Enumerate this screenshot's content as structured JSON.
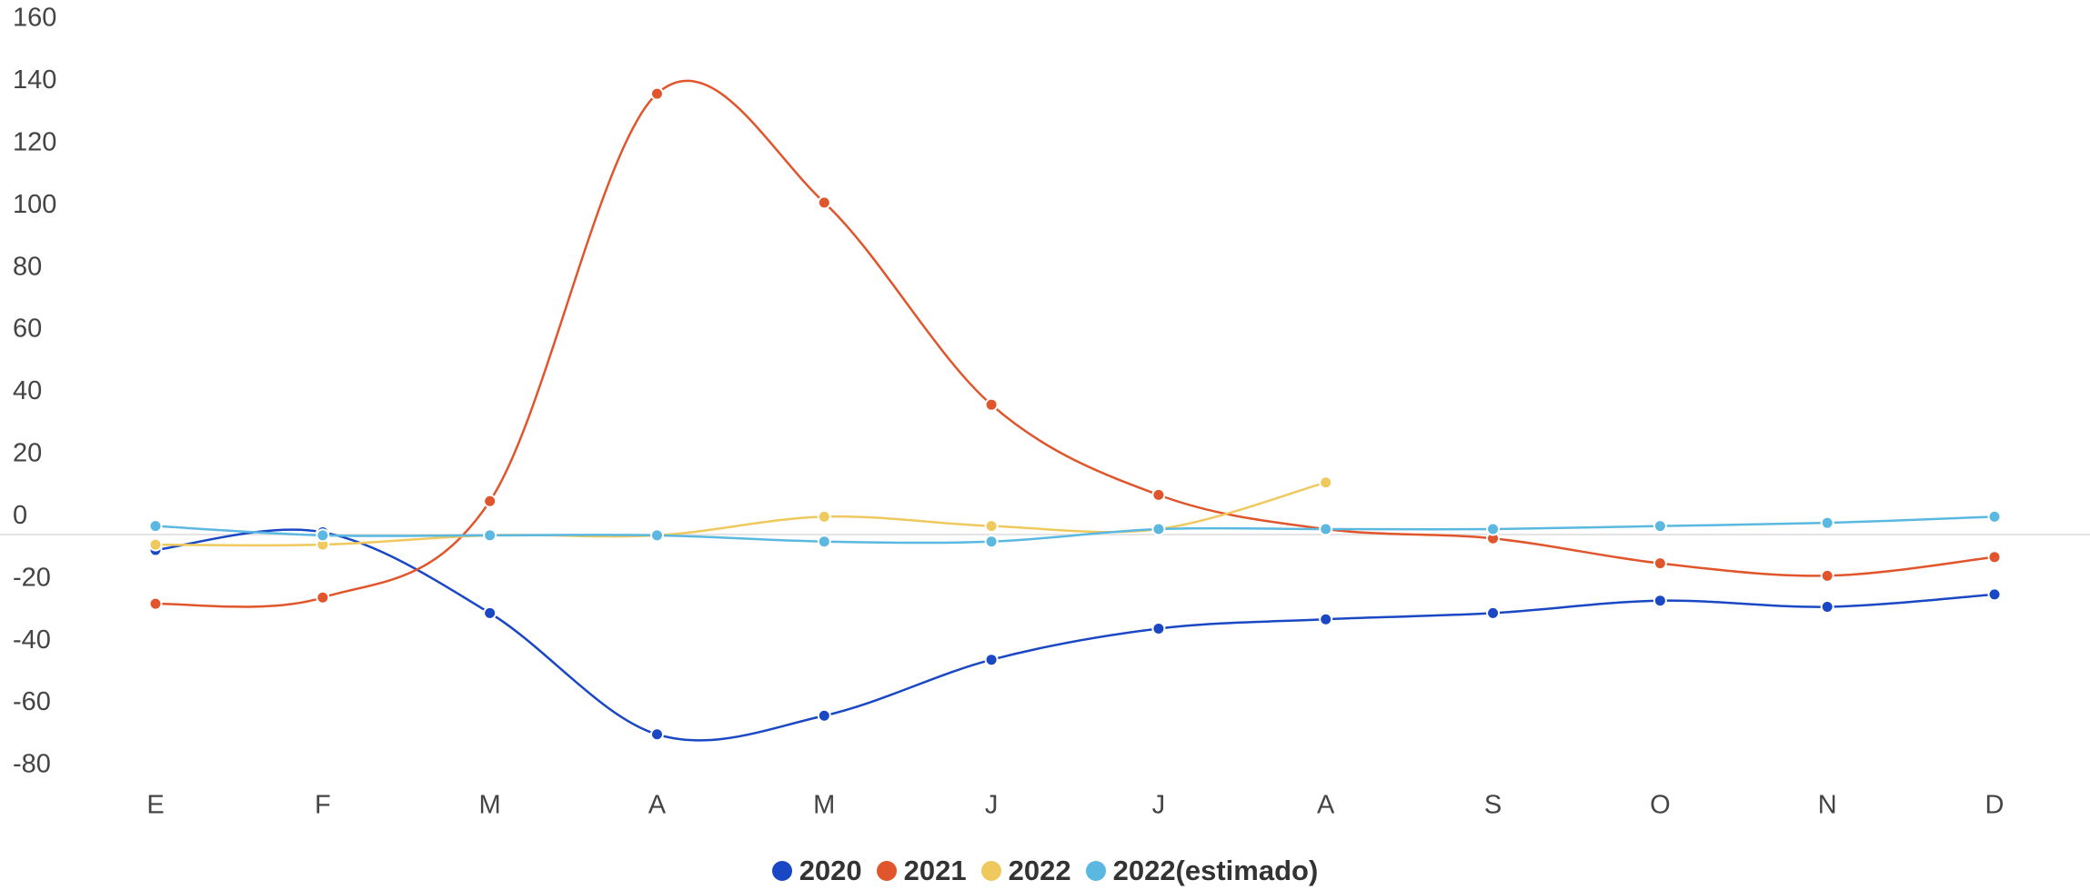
{
  "chart_data": {
    "type": "line",
    "categories": [
      "E",
      "F",
      "M",
      "A",
      "M",
      "J",
      "J",
      "A",
      "S",
      "O",
      "N",
      "D"
    ],
    "series": [
      {
        "name": "2020",
        "color": "#1a47c4",
        "values": [
          -10.7,
          -5,
          -31,
          -70,
          -64,
          -46,
          -36,
          -33,
          -31,
          -27,
          -29,
          -25
        ]
      },
      {
        "name": "2021",
        "color": "#e0552b",
        "values": [
          -28,
          -26,
          5,
          136,
          101,
          36,
          7,
          -4,
          -7,
          -15,
          -19,
          -13
        ]
      },
      {
        "name": "2022",
        "color": "#efc95e",
        "values": [
          -9,
          -9,
          -6,
          -6,
          0,
          -3,
          -4,
          11,
          null,
          null,
          null,
          null
        ]
      },
      {
        "name": "2022(estimado)",
        "color": "#5bb8e0",
        "values": [
          -3,
          -6,
          -6,
          -6,
          -8,
          -8,
          -4,
          -4,
          -4,
          -3,
          -2,
          0
        ]
      }
    ],
    "ylim": [
      -80,
      160
    ],
    "yticks": [
      -80,
      -60,
      -40,
      -20,
      0,
      20,
      40,
      60,
      80,
      100,
      120,
      140,
      160
    ],
    "grid": false,
    "legend": "bottom"
  }
}
